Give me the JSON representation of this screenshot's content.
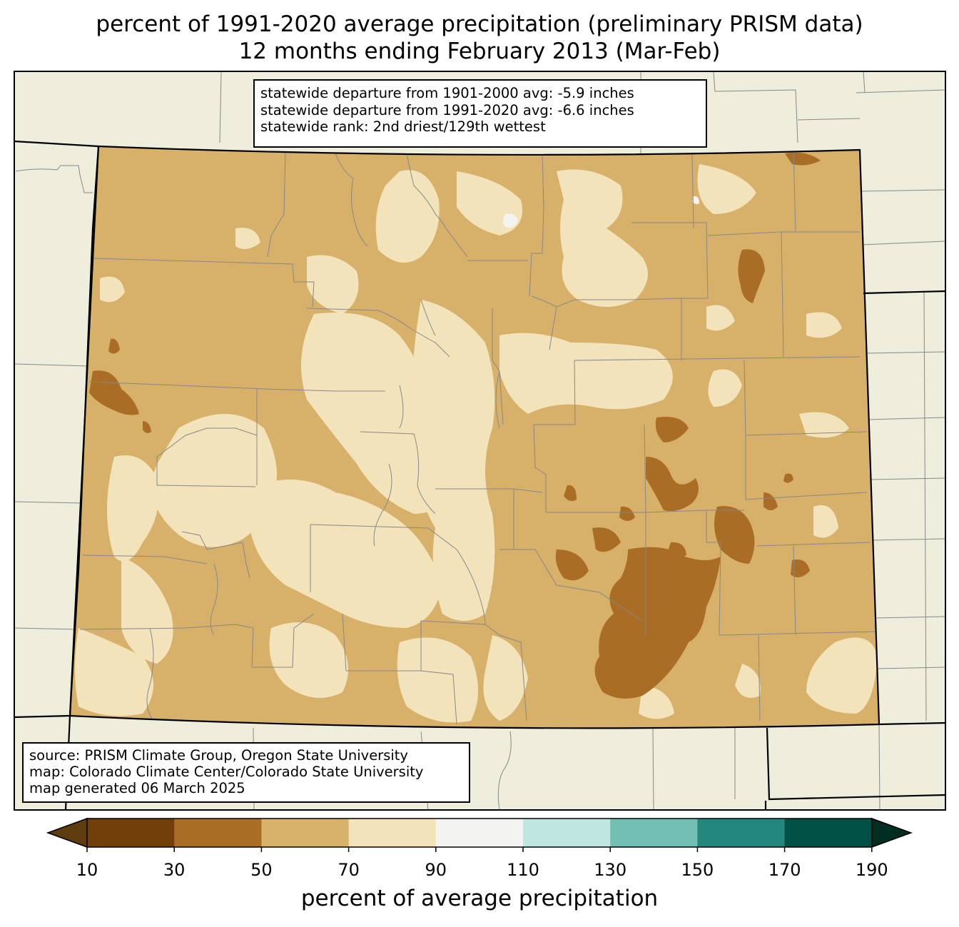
{
  "title": {
    "line1": "percent of 1991-2020 average precipitation (preliminary PRISM data)",
    "line2": "12 months ending February 2013 (Mar-Feb)"
  },
  "stats": {
    "line1": "statewide departure from 1901-2000 avg: -5.9 inches",
    "line2": "statewide departure from 1991-2020 avg: -6.6 inches",
    "line3": "statewide rank: 2nd driest/129th wettest"
  },
  "credits": {
    "line1": "source: PRISM Climate Group, Oregon State University",
    "line2": "map: Colorado Climate Center/Colorado State University",
    "line3": "map generated 06 March 2025"
  },
  "colorbar": {
    "label": "percent of average precipitation",
    "ticks": [
      "10",
      "30",
      "50",
      "70",
      "90",
      "110",
      "130",
      "150",
      "170",
      "190"
    ],
    "colors": [
      "#5e3c0e",
      "#723f0a",
      "#a96d25",
      "#d7b06a",
      "#f3e3bb",
      "#f3f4f1",
      "#bfe6e1",
      "#71c0b3",
      "#23877e",
      "#005043",
      "#002d22"
    ]
  },
  "map_colors": {
    "background_land": "#efeddb",
    "level_30_50": "#a96d25",
    "level_50_70": "#d7b06a",
    "level_70_90": "#f3e3bb",
    "level_90_110": "#f3f4f1",
    "county_lines": "#888888",
    "state_lines": "#000000"
  }
}
